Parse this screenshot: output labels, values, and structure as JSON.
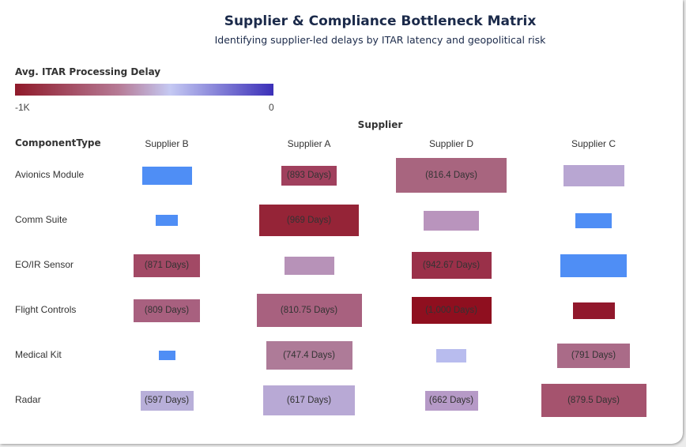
{
  "title": "Supplier & Compliance Bottleneck Matrix",
  "subtitle": "Identifying supplier-led delays by ITAR latency and geopolitical risk",
  "legend": {
    "title": "Avg. ITAR Processing Delay",
    "min_label": "-1K",
    "max_label": "0",
    "colors": [
      "#8f1a2a",
      "#b67a95",
      "#c5c9f3",
      "#3b2fb8"
    ]
  },
  "column_axis_title": "Supplier",
  "row_axis_title": "ComponentType",
  "chart_data": {
    "type": "heatmap",
    "columns": [
      "Supplier B",
      "Supplier A",
      "Supplier D",
      "Supplier C"
    ],
    "rows": [
      "Avionics Module",
      "Comm Suite",
      "EO/IR Sensor",
      "Flight Controls",
      "Medical Kit",
      "Radar"
    ],
    "color_measure": "Avg. ITAR Processing Delay",
    "color_range": [
      -1000,
      0
    ],
    "cells": [
      [
        {
          "label": "",
          "fill": "#4f8ef5",
          "size": 0.45
        },
        {
          "label": "(893 Days)",
          "fill": "#a0405d",
          "size": 0.5
        },
        {
          "label": "(816.4 Days)",
          "fill": "#a8657f",
          "size": 1.0
        },
        {
          "label": "",
          "fill": "#b8a6d2",
          "size": 0.55
        }
      ],
      [
        {
          "label": "",
          "fill": "#4f8ef5",
          "size": 0.2
        },
        {
          "label": "(969 Days)",
          "fill": "#952437",
          "size": 0.9
        },
        {
          "label": "",
          "fill": "#b994bd",
          "size": 0.5
        },
        {
          "label": "",
          "fill": "#4f8ef5",
          "size": 0.33
        }
      ],
      [
        {
          "label": "(871 Days)",
          "fill": "#a24965",
          "size": 0.6
        },
        {
          "label": "",
          "fill": "#b792b8",
          "size": 0.45
        },
        {
          "label": "(942.67 Days)",
          "fill": "#9a3049",
          "size": 0.72
        },
        {
          "label": "",
          "fill": "#4f8ef5",
          "size": 0.6
        }
      ],
      [
        {
          "label": "(809 Days)",
          "fill": "#a8607f",
          "size": 0.6
        },
        {
          "label": "(810.75 Days)",
          "fill": "#a8617f",
          "size": 0.95
        },
        {
          "label": "(1,000 Days)",
          "fill": "#8f0f1f",
          "size": 0.72
        },
        {
          "label": "",
          "fill": "#91182c",
          "size": 0.38
        }
      ],
      [
        {
          "label": "",
          "fill": "#4f8ef5",
          "size": 0.15
        },
        {
          "label": "(747.4 Days)",
          "fill": "#ae7b98",
          "size": 0.78
        },
        {
          "label": "",
          "fill": "#b8bcee",
          "size": 0.27
        },
        {
          "label": "(791 Days)",
          "fill": "#aa6b88",
          "size": 0.66
        }
      ],
      [
        {
          "label": "(597 Days)",
          "fill": "#b8afd9",
          "size": 0.48
        },
        {
          "label": "(617 Days)",
          "fill": "#b8a9d5",
          "size": 0.83
        },
        {
          "label": "(662 Days)",
          "fill": "#b69ac7",
          "size": 0.48
        },
        {
          "label": "(879.5 Days)",
          "fill": "#a5536e",
          "size": 0.95
        }
      ]
    ]
  }
}
